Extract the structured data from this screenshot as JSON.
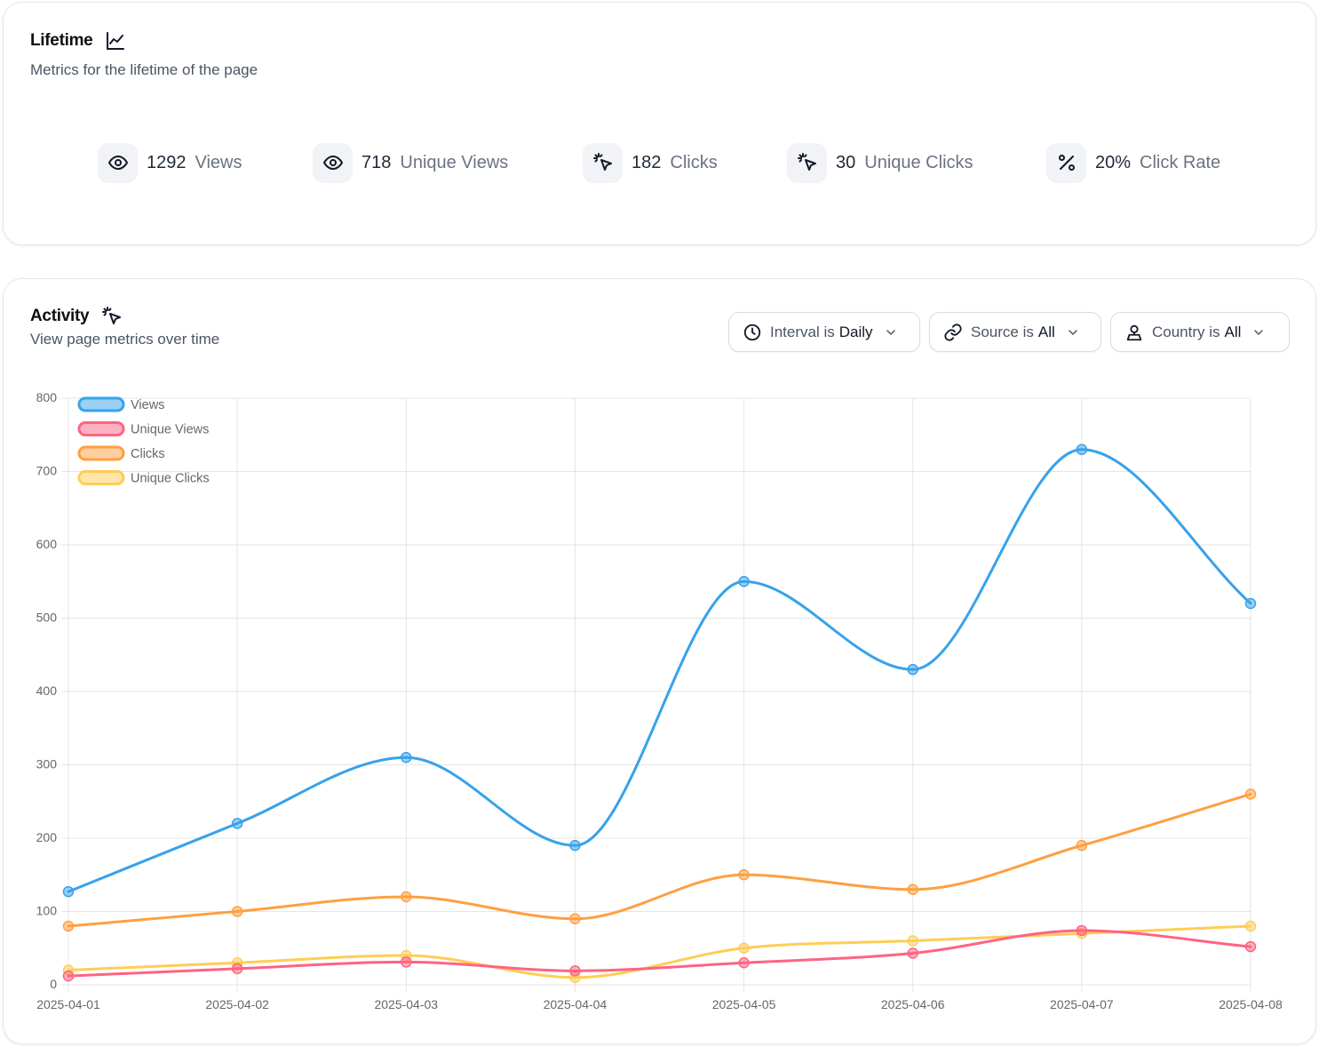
{
  "lifetime": {
    "title": "Lifetime",
    "subtitle": "Metrics for the lifetime of the page",
    "title_icon": "line-chart-icon",
    "metrics": [
      {
        "value": "1292",
        "label": "Views",
        "icon": "eye-icon"
      },
      {
        "value": "718",
        "label": "Unique Views",
        "icon": "eye-icon"
      },
      {
        "value": "182",
        "label": "Clicks",
        "icon": "cursor-click-icon"
      },
      {
        "value": "30",
        "label": "Unique Clicks",
        "icon": "cursor-click-icon"
      },
      {
        "value": "20%",
        "label": "Click Rate",
        "icon": "percent-icon"
      }
    ]
  },
  "activity": {
    "title": "Activity",
    "subtitle": "View page metrics over time",
    "title_icon": "cursor-click-icon",
    "filters": [
      {
        "key": "Interval is",
        "value": "Daily",
        "icon": "clock-icon"
      },
      {
        "key": "Source is",
        "value": "All",
        "icon": "link-icon"
      },
      {
        "key": "Country is",
        "value": "All",
        "icon": "user-pin-icon"
      }
    ]
  },
  "colors": {
    "views": "#36a2eb",
    "unique_views": "#ff6384",
    "clicks": "#ff9f40",
    "unique_clicks": "#ffcd56",
    "grid": "#e5e5e5",
    "tick_text": "#666666"
  },
  "chart_data": {
    "type": "line",
    "title": "",
    "xlabel": "",
    "ylabel": "",
    "ylim": [
      0,
      800
    ],
    "yticks": [
      "0",
      "100",
      "200",
      "300",
      "400",
      "500",
      "600",
      "700",
      "800"
    ],
    "categories": [
      "2025-04-01",
      "2025-04-02",
      "2025-04-03",
      "2025-04-04",
      "2025-04-05",
      "2025-04-06",
      "2025-04-07",
      "2025-04-08"
    ],
    "legend_position": "top-left",
    "grid": true,
    "series": [
      {
        "name": "Views",
        "values": [
          127,
          220,
          310,
          190,
          550,
          430,
          730,
          520
        ]
      },
      {
        "name": "Unique Views",
        "values": [
          12,
          22,
          31,
          19,
          30,
          43,
          74,
          52
        ]
      },
      {
        "name": "Clicks",
        "values": [
          80,
          100,
          120,
          90,
          150,
          130,
          190,
          260
        ]
      },
      {
        "name": "Unique Clicks",
        "values": [
          20,
          30,
          40,
          10,
          50,
          60,
          70,
          80
        ]
      }
    ]
  }
}
